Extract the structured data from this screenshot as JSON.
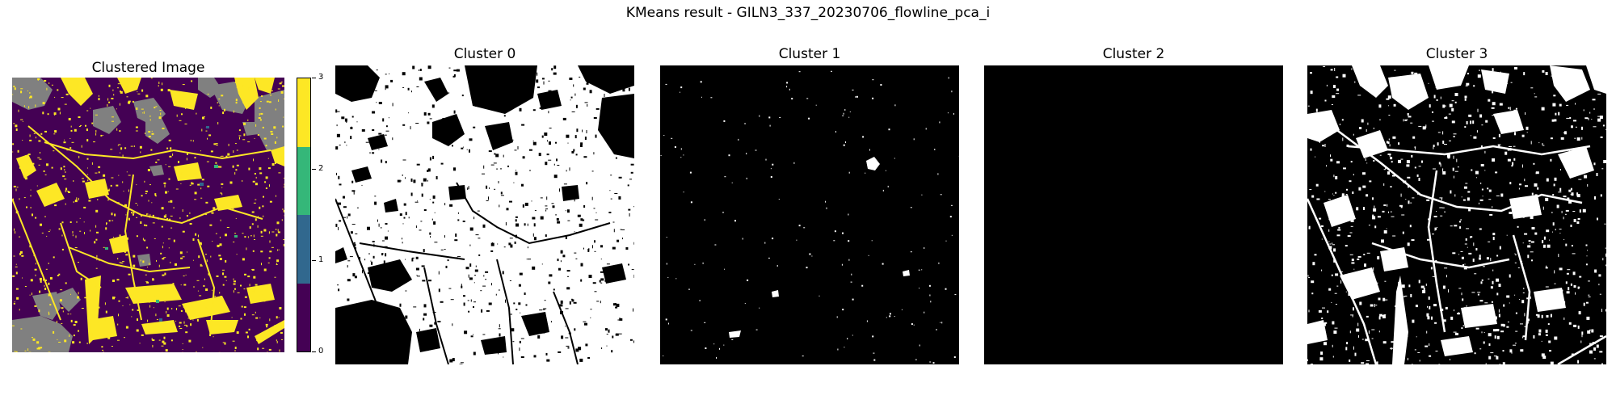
{
  "figure": {
    "suptitle": "KMeans result - GILN3_337_20230706_flowline_pca_i"
  },
  "panels": [
    {
      "title": "Clustered Image",
      "kind": "clustered"
    },
    {
      "title": "Cluster 0",
      "kind": "mask"
    },
    {
      "title": "Cluster 1",
      "kind": "mask"
    },
    {
      "title": "Cluster 2",
      "kind": "mask"
    },
    {
      "title": "Cluster 3",
      "kind": "mask"
    }
  ],
  "colorbar": {
    "ticks": [
      "0",
      "1",
      "2",
      "3"
    ],
    "colors": [
      "#440154",
      "#31688e",
      "#35b779",
      "#fde725"
    ]
  },
  "chart_data": {
    "type": "heatmap",
    "title": "KMeans result - GILN3_337_20230706_flowline_pca_i",
    "colormap": "viridis",
    "cluster_labels": [
      0,
      1,
      2,
      3
    ],
    "cluster_colors": {
      "0": "#440154",
      "1": "#31688e",
      "2": "#35b779",
      "3": "#fde725",
      "masked": "#808080"
    },
    "colorbar_range": [
      0,
      3
    ],
    "subplots": [
      "Clustered Image",
      "Cluster 0",
      "Cluster 1",
      "Cluster 2",
      "Cluster 3"
    ]
  }
}
